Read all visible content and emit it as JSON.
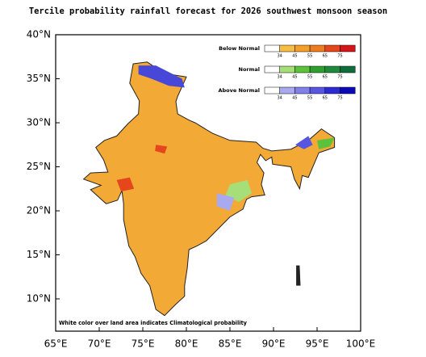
{
  "title": "Tercile probability rainfall forecast for 2026 southwest monsoon  season",
  "map": {
    "xticks": [
      {
        "value": 65,
        "label": "65°E"
      },
      {
        "value": 70,
        "label": "70°E"
      },
      {
        "value": 75,
        "label": "75°E"
      },
      {
        "value": 80,
        "label": "80°E"
      },
      {
        "value": 85,
        "label": "85°E"
      },
      {
        "value": 90,
        "label": "90°E"
      },
      {
        "value": 95,
        "label": "95°E"
      },
      {
        "value": 100,
        "label": "100°E"
      }
    ],
    "yticks": [
      {
        "value": 10,
        "label": "10°N"
      },
      {
        "value": 15,
        "label": "15°N"
      },
      {
        "value": 20,
        "label": "20°N"
      },
      {
        "value": 25,
        "label": "25°N"
      },
      {
        "value": 30,
        "label": "30°N"
      },
      {
        "value": 35,
        "label": "35°N"
      },
      {
        "value": 40,
        "label": "40°N"
      }
    ],
    "note": "White color over land area indicates Climatological probability"
  },
  "legend": {
    "ticks": [
      34,
      45,
      55,
      65,
      75
    ],
    "entries": [
      {
        "name": "Below Normal",
        "colors": [
          "#ffffff",
          "#f7bd45",
          "#f39f2a",
          "#ee7d1f",
          "#e6461c",
          "#d2161a"
        ]
      },
      {
        "name": "Normal",
        "colors": [
          "#ffffff",
          "#a6df78",
          "#5dc23b",
          "#2fa02f",
          "#1f8a3b",
          "#0f6d3a"
        ]
      },
      {
        "name": "Above Normal",
        "colors": [
          "#ffffff",
          "#a9a9f0",
          "#8080e8",
          "#5656e0",
          "#2b2bd6",
          "#0b0bb6"
        ]
      }
    ]
  }
}
